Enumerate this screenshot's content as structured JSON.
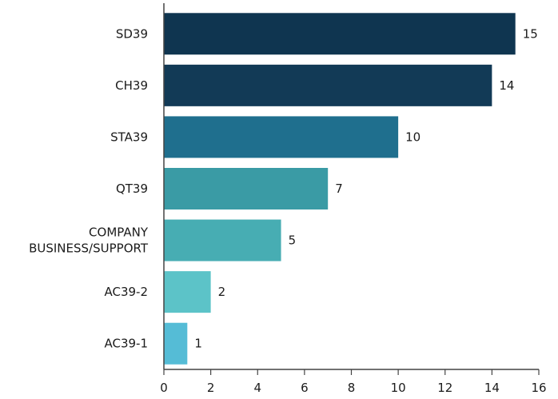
{
  "chart_data": {
    "type": "bar",
    "orientation": "horizontal",
    "title": "",
    "xlabel": "",
    "ylabel": "",
    "categories": [
      [
        "SD39"
      ],
      [
        "CH39"
      ],
      [
        "STA39"
      ],
      [
        "QT39"
      ],
      [
        "COMPANY",
        "BUSINESS/SUPPORT"
      ],
      [
        "AC39-2"
      ],
      [
        "AC39-1"
      ]
    ],
    "values": [
      15,
      14,
      10,
      7,
      5,
      2,
      1
    ],
    "bar_colors": [
      "#0f3550",
      "#123a56",
      "#1f6f8e",
      "#3a9ba5",
      "#47adb3",
      "#5cc3c8",
      "#55bcd6"
    ],
    "xlim": [
      0,
      16
    ],
    "xticks": [
      0,
      2,
      4,
      6,
      8,
      10,
      12,
      14,
      16
    ],
    "grid": false,
    "legend": "none",
    "axis_color": "#444444"
  }
}
